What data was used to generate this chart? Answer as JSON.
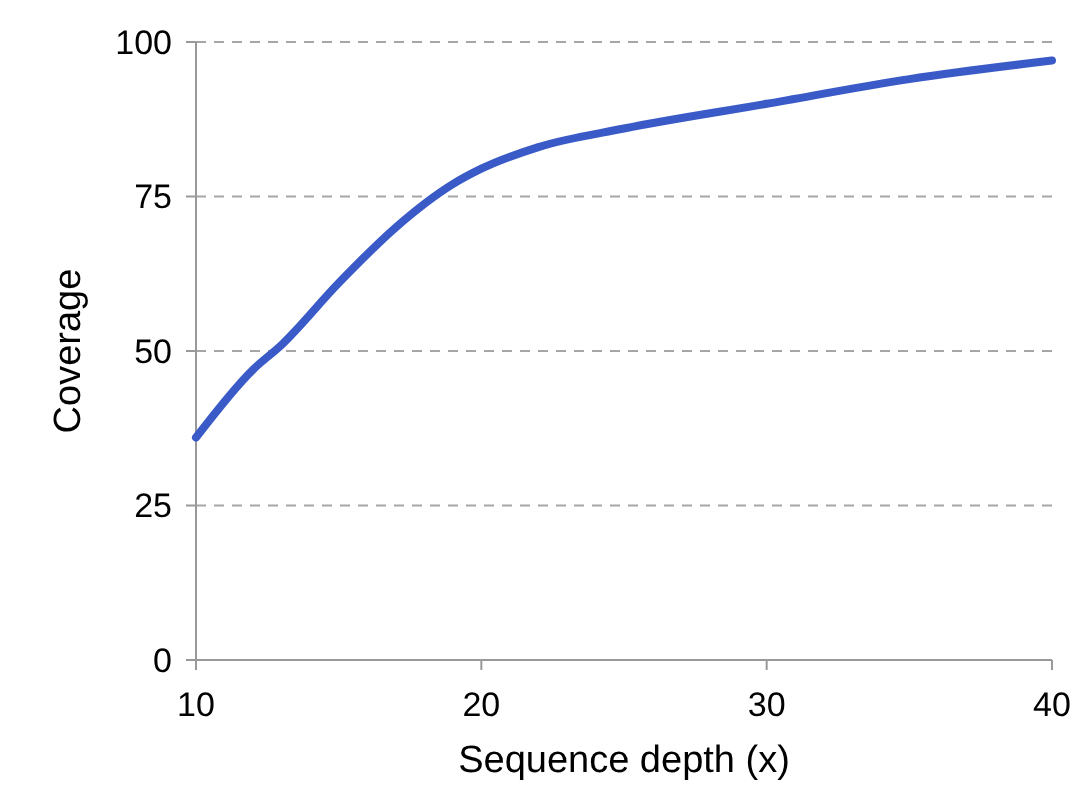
{
  "chart_data": {
    "type": "line",
    "xlabel": "Sequence depth (x)",
    "ylabel": "Coverage",
    "x": [
      10,
      12,
      13,
      15,
      17,
      19,
      20,
      22,
      25,
      30,
      35,
      40
    ],
    "series": [
      {
        "color": "#3a5bc7",
        "values": [
          36,
          47,
          51,
          61,
          70,
          77,
          79.5,
          83,
          86,
          90,
          94,
          97
        ]
      }
    ],
    "xlim": [
      10,
      40
    ],
    "xticks": [
      10,
      20,
      30,
      40
    ],
    "ylim": [
      0,
      100
    ],
    "yticks": [
      0,
      25,
      50,
      75,
      100
    ],
    "grid": "y",
    "marker": "none",
    "line_style": "solid"
  }
}
